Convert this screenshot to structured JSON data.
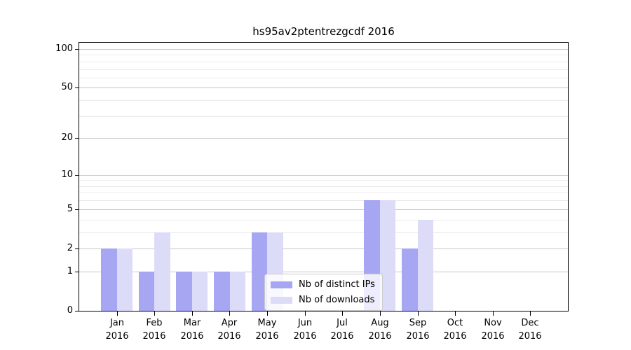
{
  "title": "hs95av2ptentrezgcdf 2016",
  "chart_data": {
    "type": "bar",
    "title": "hs95av2ptentrezgcdf 2016",
    "categories": [
      "Jan",
      "Feb",
      "Mar",
      "Apr",
      "May",
      "Jun",
      "Jul",
      "Aug",
      "Sep",
      "Oct",
      "Nov",
      "Dec"
    ],
    "year": "2016",
    "series": [
      {
        "name": "Nb of distinct IPs",
        "color": "#a6a6f2",
        "values": [
          2,
          1,
          1,
          1,
          3,
          0,
          0,
          6,
          2,
          0,
          0,
          0
        ]
      },
      {
        "name": "Nb of downloads",
        "color": "#dcdcf8",
        "values": [
          2,
          3,
          1,
          1,
          3,
          0,
          0,
          6,
          4,
          0,
          0,
          0
        ]
      }
    ],
    "yscale": "log1p",
    "ylim": [
      0,
      112
    ],
    "yticks": [
      0,
      1,
      2,
      5,
      10,
      20,
      50,
      100
    ],
    "ytick_labels": [
      "0",
      "1",
      "2",
      "5",
      "10",
      "20",
      "50",
      "100"
    ],
    "minor_gridlines": [
      3,
      4,
      6,
      7,
      8,
      9,
      30,
      40,
      60,
      70,
      80,
      90
    ],
    "grid": true,
    "legend_position": "lower-center-right",
    "colors": {
      "major_grid": "#c6c6c6",
      "minor_grid": "#ebebeb",
      "axis": "#000000",
      "background": "#ffffff"
    }
  }
}
